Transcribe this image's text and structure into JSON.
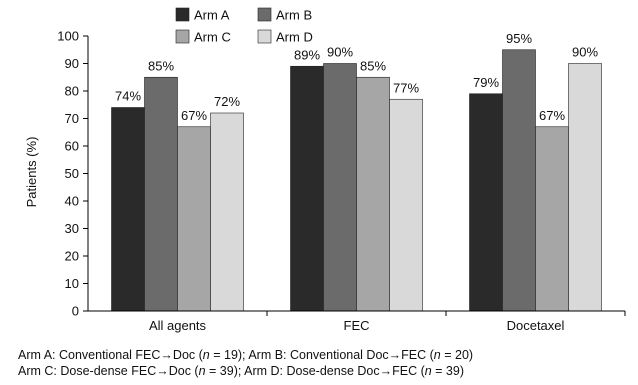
{
  "chart_data": {
    "type": "bar",
    "categories": [
      "All agents",
      "FEC",
      "Docetaxel"
    ],
    "series": [
      {
        "name": "Arm A",
        "values": [
          74,
          89,
          79
        ],
        "labels": [
          "74%",
          "89%",
          "79%"
        ],
        "color": "#2a2a2a"
      },
      {
        "name": "Arm B",
        "values": [
          85,
          90,
          95
        ],
        "labels": [
          "85%",
          "90%",
          "95%"
        ],
        "color": "#6b6b6b"
      },
      {
        "name": "Arm C",
        "values": [
          67,
          85,
          67
        ],
        "labels": [
          "67%",
          "85%",
          "67%"
        ],
        "color": "#a6a6a6"
      },
      {
        "name": "Arm D",
        "values": [
          72,
          77,
          90
        ],
        "labels": [
          "72%",
          "77%",
          "90%"
        ],
        "color": "#d9d9d9"
      }
    ],
    "title": "",
    "xlabel": "",
    "ylabel": "Patients (%)",
    "ylim": [
      0,
      100
    ],
    "yticks": [
      "0",
      "10",
      "20",
      "30",
      "40",
      "50",
      "60",
      "70",
      "80",
      "90",
      "100"
    ],
    "grid": false,
    "legend": "top, two rows"
  },
  "footnotes": {
    "line1": {
      "a1": "Arm A: Conventional FEC→Doc (",
      "n1": "n",
      "a2": " = 19); Arm B: Conventional Doc→FEC (",
      "n2": "n",
      "a3": " = 20)"
    },
    "line2": {
      "a1": "Arm C: Dose-dense FEC→Doc (",
      "n1": "n",
      "a2": " = 39); Arm D: Dose-dense Doc→FEC (",
      "n2": "n",
      "a3": " = 39)"
    }
  }
}
